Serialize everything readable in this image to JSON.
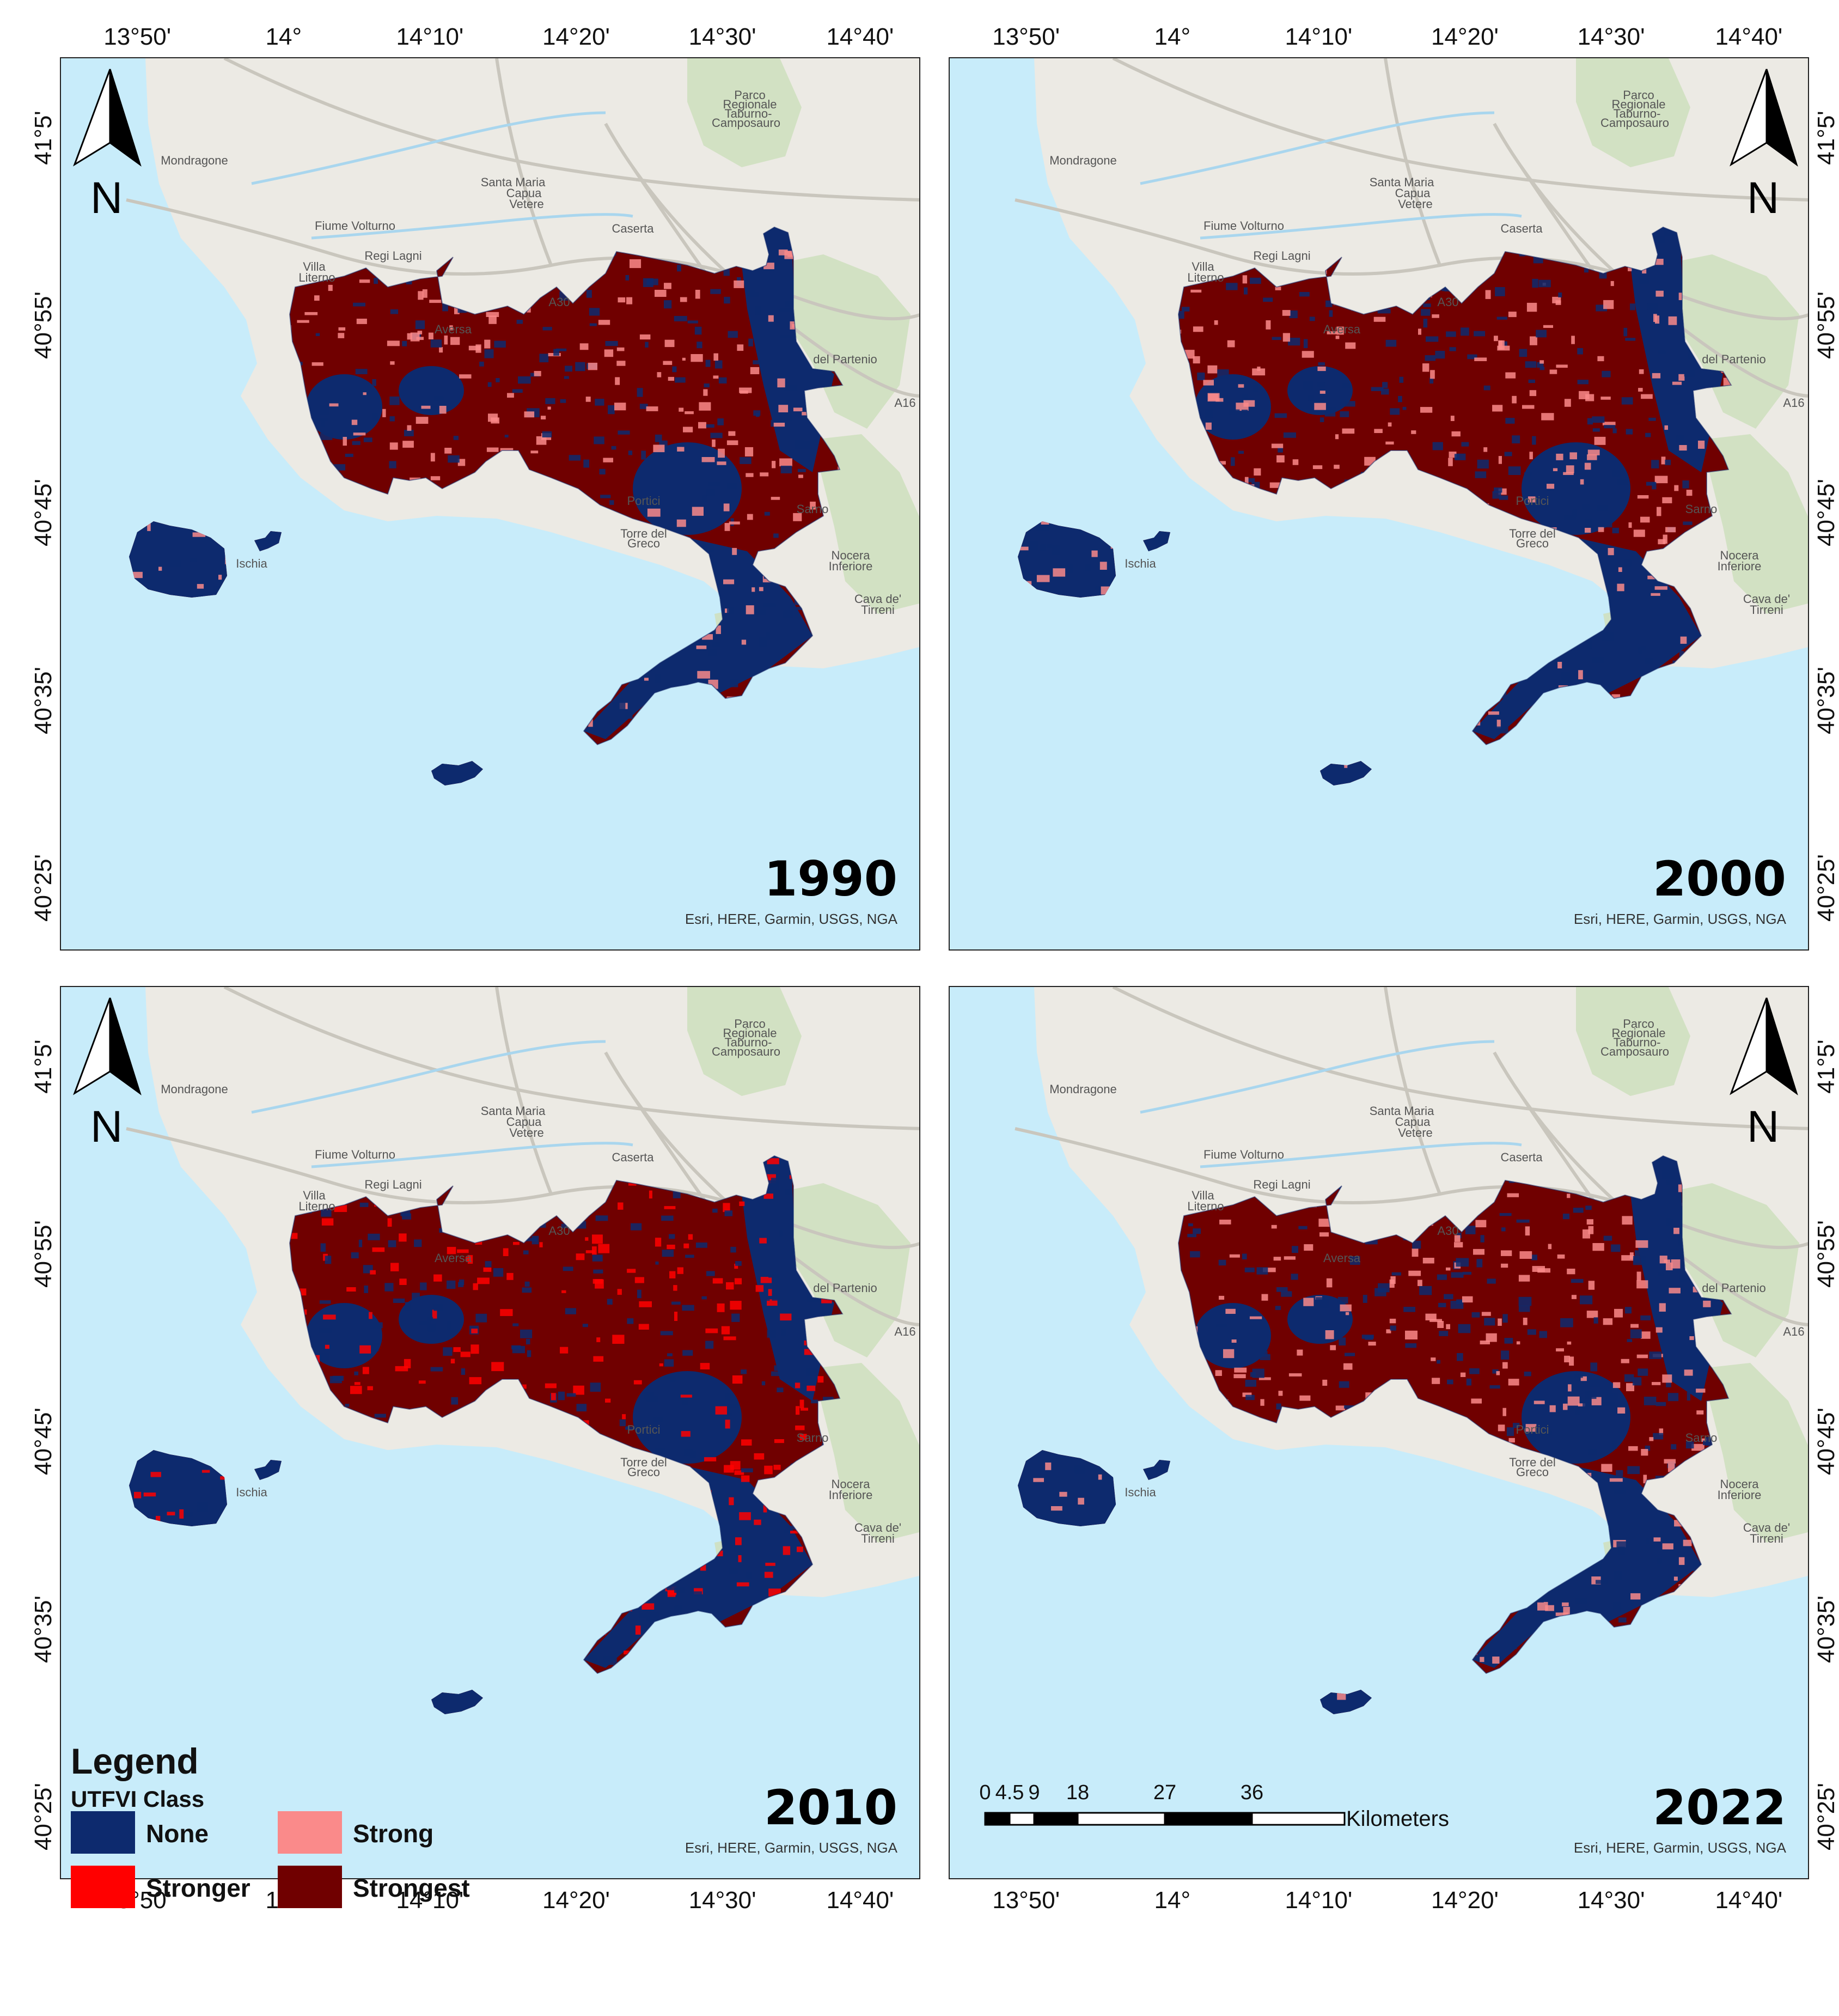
{
  "panels": [
    {
      "year": "1990",
      "credit": "Esri, HERE, Garmin, USGS, NGA"
    },
    {
      "year": "2000",
      "credit": "Esri, HERE, Garmin, USGS, NGA"
    },
    {
      "year": "2010",
      "credit": "Esri, HERE, Garmin, USGS, NGA"
    },
    {
      "year": "2022",
      "credit": "Esri, HERE, Garmin, USGS, NGA"
    }
  ],
  "lon_ticks": [
    "13°50'",
    "14°",
    "14°10'",
    "14°20'",
    "14°30'",
    "14°40'"
  ],
  "lat_ticks": [
    "41°5'",
    "40°55'",
    "40°45'",
    "40°35'",
    "40°25'"
  ],
  "north_label": "N",
  "places": [
    {
      "name": "Mondragone"
    },
    {
      "name": "Santa Maria"
    },
    {
      "name": "Capua"
    },
    {
      "name": "Vetere"
    },
    {
      "name": "Caserta"
    },
    {
      "name": "Villa"
    },
    {
      "name": "Literno"
    },
    {
      "name": "Aversa"
    },
    {
      "name": "Parco"
    },
    {
      "name": "Regionale"
    },
    {
      "name": "Taburno-"
    },
    {
      "name": "Camposauro"
    },
    {
      "name": "Fiume Volturno"
    },
    {
      "name": "Regi Lagni"
    },
    {
      "name": "Portici"
    },
    {
      "name": "Torre del"
    },
    {
      "name": "Greco"
    },
    {
      "name": "Ischia"
    },
    {
      "name": "Sarno"
    },
    {
      "name": "Nocera"
    },
    {
      "name": "Inferiore"
    },
    {
      "name": "Cava de'"
    },
    {
      "name": "Tirreni"
    },
    {
      "name": "del Partenio"
    },
    {
      "name": "A30"
    },
    {
      "name": "A16"
    }
  ],
  "legend": {
    "title": "Legend",
    "subtitle": "UTFVI Class",
    "classes": [
      {
        "label": "None",
        "color": "#0d2a6e"
      },
      {
        "label": "Strong",
        "color": "#fa8a8a"
      },
      {
        "label": "Stronger",
        "color": "#ff0000"
      },
      {
        "label": "Strongest",
        "color": "#700000"
      }
    ]
  },
  "scale_bar": {
    "ticks": [
      "0",
      "4.5",
      "9",
      "18",
      "27",
      "36"
    ],
    "unit": "Kilometers"
  },
  "colors": {
    "water": "#c8ecfa",
    "land": "#eceae4",
    "green": "#cfe0bf",
    "none": "#0d2a6e",
    "strong": "#fa8a8a",
    "stronger": "#ff0000",
    "strongest": "#700000"
  },
  "class_mix": [
    {
      "year": "1990",
      "base": "strongest",
      "speckle": [
        "strong",
        "none"
      ]
    },
    {
      "year": "2000",
      "base": "strongest",
      "speckle": [
        "strong",
        "none"
      ]
    },
    {
      "year": "2010",
      "base": "strongest",
      "speckle": [
        "stronger",
        "none"
      ]
    },
    {
      "year": "2022",
      "base": "strongest",
      "speckle": [
        "strong",
        "none"
      ]
    }
  ]
}
